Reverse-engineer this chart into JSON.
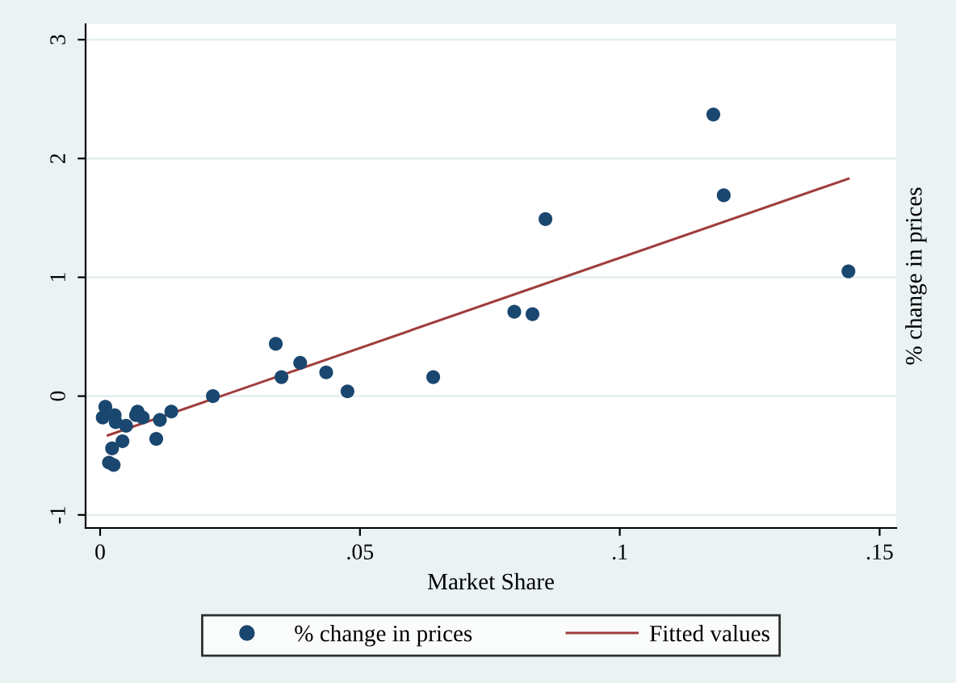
{
  "chart_data": {
    "type": "scatter",
    "xlabel": "Market Share",
    "ylabel": "% change in prices",
    "xlim": [
      -0.0028,
      0.1532
    ],
    "ylim": [
      -1.11,
      3.13
    ],
    "xticks": [
      {
        "value": 0,
        "label": "0"
      },
      {
        "value": 0.05,
        "label": ".05"
      },
      {
        "value": 0.1,
        "label": ".1"
      },
      {
        "value": 0.15,
        "label": ".15"
      }
    ],
    "yticks": [
      -1,
      0,
      1,
      2,
      3
    ],
    "grid": "y",
    "legend": "bottom",
    "marker": "circle",
    "series": [
      {
        "name": "% change in prices",
        "color": "#1a476f",
        "x": [
          0.001,
          0.0005,
          0.0028,
          0.003,
          0.005,
          0.0043,
          0.0023,
          0.0017,
          0.0026,
          0.0072,
          0.0069,
          0.0082,
          0.0108,
          0.0115,
          0.0137,
          0.0217,
          0.0338,
          0.0349,
          0.0385,
          0.0435,
          0.0476,
          0.0641,
          0.0797,
          0.0832,
          0.0857,
          0.118,
          0.12,
          0.144
        ],
        "values": [
          -0.09,
          -0.18,
          -0.16,
          -0.22,
          -0.25,
          -0.38,
          -0.44,
          -0.56,
          -0.58,
          -0.13,
          -0.16,
          -0.18,
          -0.36,
          -0.2,
          -0.13,
          0.0,
          0.44,
          0.16,
          0.28,
          0.2,
          0.04,
          0.16,
          0.71,
          0.69,
          1.49,
          2.37,
          1.69,
          1.05
        ]
      },
      {
        "name": "Fitted values",
        "type": "line",
        "color": "#a03c3c",
        "marker": "none",
        "x": [
          0.0015,
          0.144
        ],
        "values": [
          -0.33,
          1.83
        ]
      }
    ]
  }
}
